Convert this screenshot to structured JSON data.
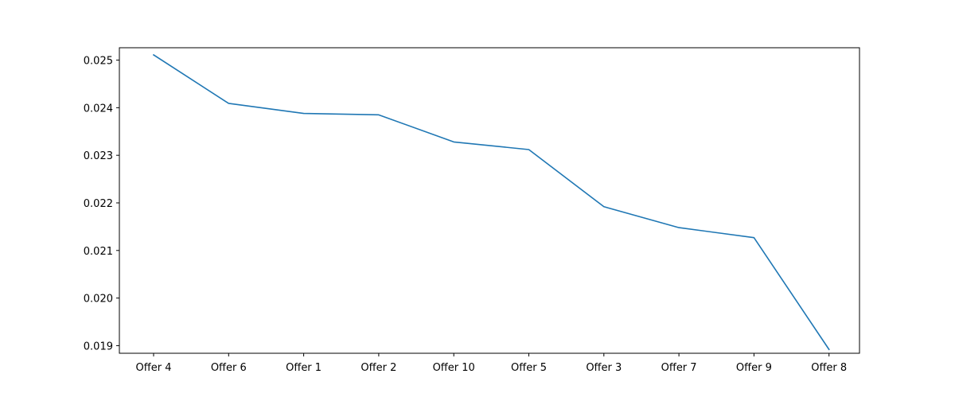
{
  "chart_data": {
    "type": "line",
    "title": "",
    "xlabel": "",
    "ylabel": "",
    "categories": [
      "Offer 4",
      "Offer 6",
      "Offer 1",
      "Offer 2",
      "Offer 10",
      "Offer 5",
      "Offer 3",
      "Offer 7",
      "Offer 9",
      "Offer 8"
    ],
    "series": [
      {
        "values": [
          0.02511,
          0.02409,
          0.02388,
          0.02385,
          0.02328,
          0.02312,
          0.02192,
          0.02148,
          0.02127,
          0.01892
        ],
        "color": "#1f77b4"
      }
    ],
    "ylim": [
      0.01884,
      0.02526
    ],
    "yticks": [
      0.019,
      0.02,
      0.021,
      0.022,
      0.023,
      0.024,
      0.025
    ],
    "ytick_labels": [
      "0.019",
      "0.020",
      "0.021",
      "0.022",
      "0.023",
      "0.024",
      "0.025"
    ],
    "grid": false,
    "legend": "none"
  }
}
